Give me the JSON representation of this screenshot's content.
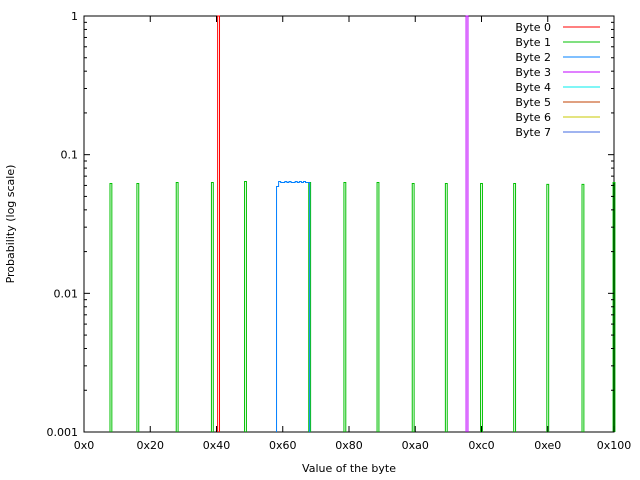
{
  "chart_data": {
    "type": "line",
    "title": "",
    "xlabel": "Value of the byte",
    "ylabel": "Probability (log scale)",
    "xscale": "linear",
    "yscale": "log",
    "xlim": [
      0,
      256
    ],
    "ylim": [
      0.001,
      1
    ],
    "grid": false,
    "legend_position": "top-right",
    "x_ticks": [
      {
        "value": 0,
        "label": "0x0"
      },
      {
        "value": 32,
        "label": "0x20"
      },
      {
        "value": 64,
        "label": "0x40"
      },
      {
        "value": 96,
        "label": "0x60"
      },
      {
        "value": 128,
        "label": "0x80"
      },
      {
        "value": 160,
        "label": "0xa0"
      },
      {
        "value": 192,
        "label": "0xc0"
      },
      {
        "value": 224,
        "label": "0xe0"
      },
      {
        "value": 256,
        "label": "0x100"
      }
    ],
    "y_ticks": [
      {
        "value": 0.001,
        "label": "0.001"
      },
      {
        "value": 0.01,
        "label": "0.01"
      },
      {
        "value": 0.1,
        "label": "0.1"
      },
      {
        "value": 1,
        "label": "1"
      }
    ],
    "series": [
      {
        "name": "Byte 0",
        "color": "#ff0000",
        "style": "impulse",
        "points": [
          [
            65,
            1
          ]
        ]
      },
      {
        "name": "Byte 1",
        "color": "#00c000",
        "style": "impulse",
        "points": [
          [
            13,
            0.062
          ],
          [
            26,
            0.062
          ],
          [
            45,
            0.063
          ],
          [
            62,
            0.063
          ],
          [
            78,
            0.064
          ],
          [
            109,
            0.063
          ],
          [
            126,
            0.063
          ],
          [
            142,
            0.063
          ],
          [
            159,
            0.062
          ],
          [
            175,
            0.062
          ],
          [
            192,
            0.062
          ],
          [
            208,
            0.062
          ],
          [
            224,
            0.061
          ],
          [
            241,
            0.061
          ],
          [
            256,
            0.063
          ]
        ]
      },
      {
        "name": "Byte 2",
        "color": "#0080ff",
        "style": "steps",
        "points": [
          [
            93,
            0.059
          ],
          [
            94,
            0.064
          ],
          [
            95,
            0.063
          ],
          [
            96,
            0.063
          ],
          [
            97,
            0.064
          ],
          [
            98,
            0.063
          ],
          [
            99,
            0.064
          ],
          [
            100,
            0.063
          ],
          [
            101,
            0.063
          ],
          [
            102,
            0.064
          ],
          [
            103,
            0.063
          ],
          [
            104,
            0.064
          ],
          [
            105,
            0.063
          ],
          [
            106,
            0.064
          ],
          [
            107,
            0.063
          ],
          [
            108,
            0.063
          ],
          [
            109,
            0.0041
          ]
        ]
      },
      {
        "name": "Byte 3",
        "color": "#c000ff",
        "style": "impulse",
        "points": [
          [
            185,
            1
          ]
        ]
      },
      {
        "name": "Byte 4",
        "color": "#00eeee",
        "style": "impulse",
        "points": []
      },
      {
        "name": "Byte 5",
        "color": "#c04000",
        "style": "impulse",
        "points": []
      },
      {
        "name": "Byte 6",
        "color": "#c8c800",
        "style": "impulse",
        "points": []
      },
      {
        "name": "Byte 7",
        "color": "#4169e1",
        "style": "impulse",
        "points": []
      }
    ]
  }
}
